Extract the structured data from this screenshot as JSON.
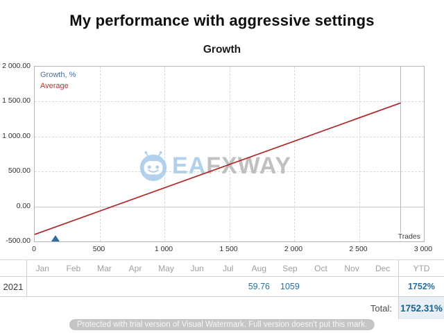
{
  "title": "My performance with aggressive settings",
  "chart": {
    "subtitle": "Growth",
    "x_axis_title": "Trades",
    "legend": [
      {
        "label": "Growth, %",
        "color": "#4472ab"
      },
      {
        "label": "Average",
        "color": "#b03a30"
      }
    ],
    "y_ticks": [
      {
        "label": "2 000.00",
        "value": 2000
      },
      {
        "label": "1 500.00",
        "value": 1500
      },
      {
        "label": "1 000.00",
        "value": 1000
      },
      {
        "label": "500.00",
        "value": 500
      },
      {
        "label": "0.00",
        "value": 0
      },
      {
        "label": "-500.00",
        "value": -500
      }
    ],
    "x_ticks": [
      {
        "label": "0",
        "value": 0
      },
      {
        "label": "500",
        "value": 500
      },
      {
        "label": "1 000",
        "value": 1000
      },
      {
        "label": "1 500",
        "value": 1500
      },
      {
        "label": "2 000",
        "value": 2000
      },
      {
        "label": "2 500",
        "value": 2500
      },
      {
        "label": "3 000",
        "value": 3000
      }
    ],
    "watermark": {
      "ea": "EA",
      "fxway": "FXWAY"
    }
  },
  "chart_data": {
    "type": "line",
    "title": "Growth",
    "xlabel": "Trades",
    "ylabel": "Growth, %",
    "xlim": [
      0,
      3000
    ],
    "ylim": [
      -500,
      2000
    ],
    "x_tick_values": [
      0,
      500,
      1000,
      1500,
      2000,
      2500,
      3000
    ],
    "y_tick_values": [
      2000,
      1500,
      1000,
      500,
      0,
      -500
    ],
    "grid": {
      "x": [
        500,
        1000,
        1500,
        2000,
        2500
      ],
      "y_dashed": [
        1500,
        1000,
        500
      ],
      "y_solid": [
        0
      ]
    },
    "cursor_x": 2820,
    "legend_position": "top-left",
    "series": [
      {
        "name": "Growth, %",
        "type": "marker",
        "marker": "triangle-up",
        "color": "#2e6da4",
        "marker_x": 160,
        "marker_y": -500
      },
      {
        "name": "Average",
        "type": "line",
        "color": "#b22222",
        "points": [
          [
            0,
            -400
          ],
          [
            2820,
            1480
          ]
        ]
      }
    ]
  },
  "table": {
    "months": [
      "Jan",
      "Feb",
      "Mar",
      "Apr",
      "May",
      "Jun",
      "Jul",
      "Aug",
      "Sep",
      "Oct",
      "Nov",
      "Dec"
    ],
    "ytd_label": "YTD",
    "row": {
      "year": "2021",
      "values": [
        "",
        "",
        "",
        "",
        "",
        "",
        "",
        "59.76",
        "1059",
        "",
        "",
        ""
      ],
      "ytd": "1752%"
    },
    "total_label": "Total:",
    "total_value": "1752.31%"
  },
  "trial_notice": "Protected with trial version of Visual Watermark. Full version doesn't put this mark.",
  "colors": {
    "value_blue": "#2471a3",
    "total_blue": "#16618f",
    "highlight_bg": "#e9eff4",
    "average_red": "#b22222",
    "growth_blue": "#4472ab"
  }
}
